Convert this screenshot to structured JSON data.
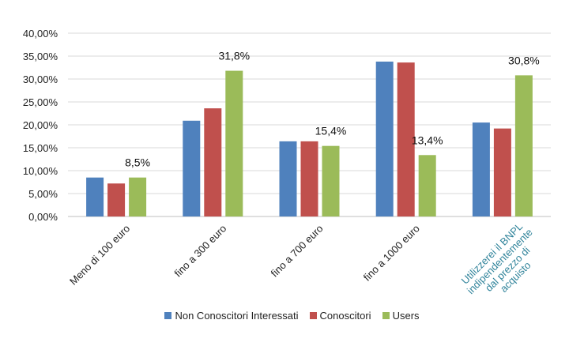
{
  "chart_data": {
    "type": "bar",
    "categories": [
      "Meno di 100 euro",
      "fino a 300 euro",
      "fino a 700 euro",
      "fino a 1000 euro",
      "Utilizzerei il BNPL indipendentemente dal prezzo di acquisto"
    ],
    "series": [
      {
        "name": "Non Conoscitori Interessati",
        "color": "#4f81bd",
        "values": [
          8.5,
          20.9,
          16.4,
          33.8,
          20.5
        ]
      },
      {
        "name": "Conoscitori",
        "color": "#c0504d",
        "values": [
          7.2,
          23.6,
          16.4,
          33.6,
          19.2
        ]
      },
      {
        "name": "Users",
        "color": "#9bbb59",
        "values": [
          8.5,
          31.8,
          15.4,
          13.4,
          30.8
        ],
        "data_labels": [
          "8,5%",
          "31,8%",
          "15,4%",
          "13,4%",
          "30,8%"
        ]
      }
    ],
    "y_ticks": [
      "0,00%",
      "5,00%",
      "10,00%",
      "15,00%",
      "20,00%",
      "25,00%",
      "30,00%",
      "35,00%",
      "40,00%"
    ],
    "ylim": [
      0,
      40
    ],
    "grid": true,
    "legend_position": "bottom",
    "category_label_colors": [
      "#222222",
      "#222222",
      "#222222",
      "#222222",
      "#31849b"
    ],
    "category_label_lines": [
      [
        "Meno di 100 euro"
      ],
      [
        "fino a 300 euro"
      ],
      [
        "fino a 700 euro"
      ],
      [
        "fino a 1000 euro"
      ],
      [
        "Utilizzerei il BNPL",
        "indipendentemente",
        "dal prezzo di",
        "acquisto"
      ]
    ]
  }
}
